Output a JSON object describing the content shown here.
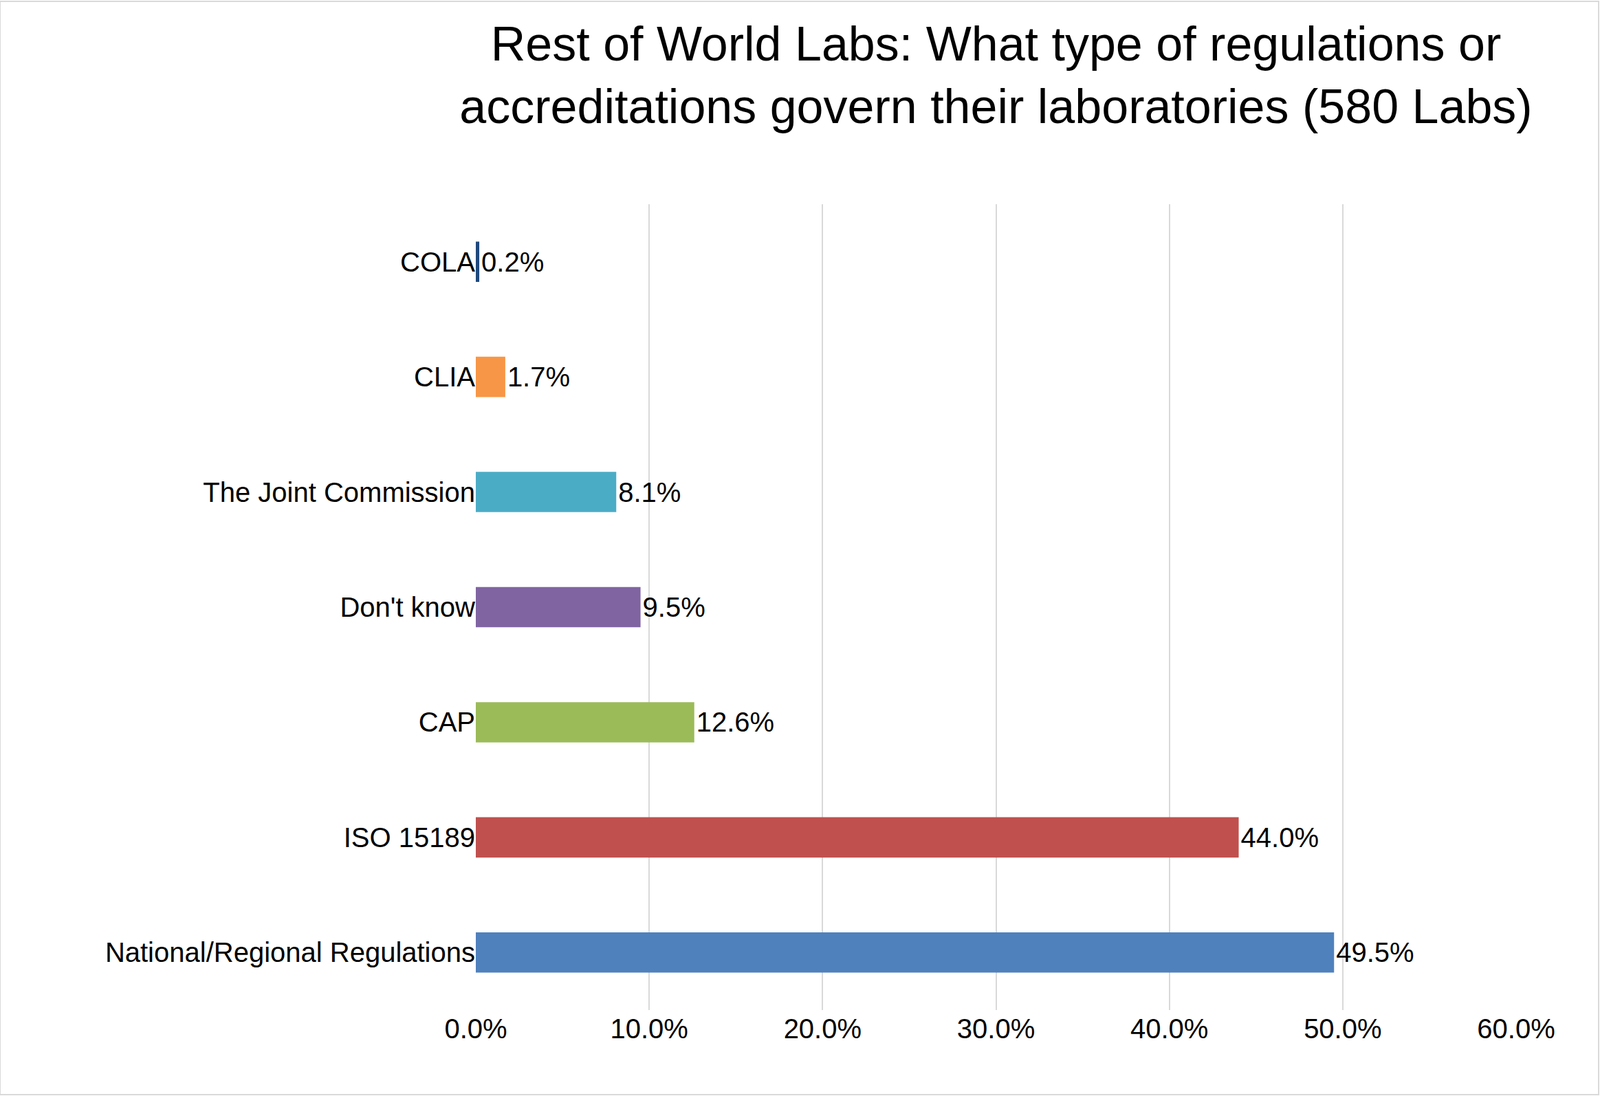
{
  "chart_data": {
    "type": "bar",
    "orientation": "horizontal",
    "title": "Rest of World Labs: What type of regulations or\naccreditations govern their laboratories (580 Labs)",
    "categories": [
      "COLA",
      "CLIA",
      "The Joint Commission",
      "Don't know",
      "CAP",
      "ISO 15189",
      "National/Regional Regulations"
    ],
    "values": [
      0.2,
      1.7,
      8.1,
      9.5,
      12.6,
      44.0,
      49.5
    ],
    "value_labels": [
      "0.2%",
      "1.7%",
      "8.1%",
      "9.5%",
      "12.6%",
      "44.0%",
      "49.5%"
    ],
    "colors": [
      "#1F497D",
      "#F79646",
      "#4BACC6",
      "#8064A2",
      "#9BBB59",
      "#C0504D",
      "#4F81BD"
    ],
    "xlim": [
      0,
      60
    ],
    "xticks": [
      {
        "value": 0,
        "label": "0.0%"
      },
      {
        "value": 10,
        "label": "10.0%"
      },
      {
        "value": 20,
        "label": "20.0%"
      },
      {
        "value": 30,
        "label": "30.0%"
      },
      {
        "value": 40,
        "label": "40.0%"
      },
      {
        "value": 50,
        "label": "50.0%"
      },
      {
        "value": 60,
        "label": "60.0%"
      }
    ],
    "grid": true,
    "data_labels": true
  }
}
